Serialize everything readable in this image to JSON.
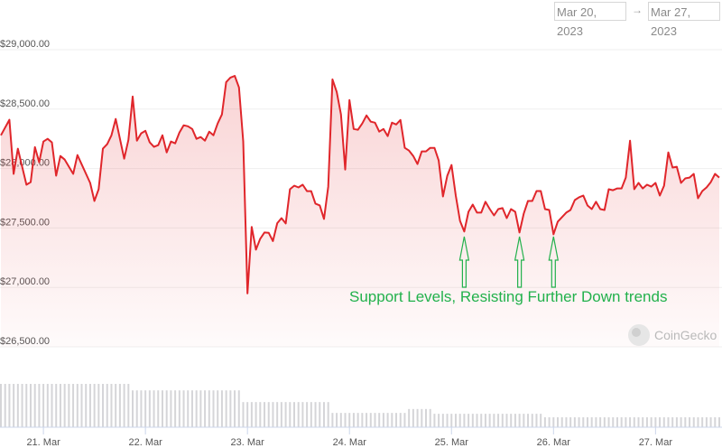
{
  "date_range": {
    "from": "Mar 20, 2023",
    "arrow": "→",
    "to": "Mar 27, 2023"
  },
  "watermark": "CoinGecko",
  "annotation": {
    "text": "Support Levels, Resisting Further  Down trends",
    "color": "#22b14c",
    "arrow_points": [
      "Mar 25 03:00",
      "Mar 25 16:00",
      "Mar 26 00:00"
    ]
  },
  "chart_data": {
    "type": "area",
    "title": "",
    "xlabel": "",
    "ylabel": "",
    "ylim": [
      26500,
      29000
    ],
    "y_ticks": [
      "$29,000.00",
      "$28,500.00",
      "$28,000.00",
      "$27,500.00",
      "$27,000.00",
      "$26,500.00"
    ],
    "y_tick_values": [
      29000,
      28500,
      28000,
      27500,
      27000,
      26500
    ],
    "x_ticks": [
      "21. Mar",
      "22. Mar",
      "23. Mar",
      "24. Mar",
      "25. Mar",
      "26. Mar",
      "27. Mar"
    ],
    "x_tick_values": [
      "Mar 21 00:00",
      "Mar 22 00:00",
      "Mar 23 00:00",
      "Mar 24 00:00",
      "Mar 25 00:00",
      "Mar 26 00:00",
      "Mar 27 00:00"
    ],
    "grid": true,
    "line_color": "#e0262b",
    "points": [
      [
        "Mar 20 14:00",
        28280
      ],
      [
        "Mar 20 16:00",
        28410
      ],
      [
        "Mar 20 17:00",
        27955
      ],
      [
        "Mar 20 18:00",
        28167
      ],
      [
        "Mar 20 20:00",
        27864
      ],
      [
        "Mar 20 21:00",
        27886
      ],
      [
        "Mar 20 22:00",
        28180
      ],
      [
        "Mar 20 23:00",
        28053
      ],
      [
        "Mar 21 00:00",
        28227
      ],
      [
        "Mar 21 01:00",
        28250
      ],
      [
        "Mar 21 02:00",
        28220
      ],
      [
        "Mar 21 03:00",
        27940
      ],
      [
        "Mar 21 04:00",
        28106
      ],
      [
        "Mar 21 05:00",
        28075
      ],
      [
        "Mar 21 07:00",
        27955
      ],
      [
        "Mar 21 08:00",
        28113
      ],
      [
        "Mar 21 11:00",
        27879
      ],
      [
        "Mar 21 12:00",
        27727
      ],
      [
        "Mar 21 13:00",
        27826
      ],
      [
        "Mar 21 14:00",
        28167
      ],
      [
        "Mar 21 15:00",
        28205
      ],
      [
        "Mar 21 16:00",
        28280
      ],
      [
        "Mar 21 17:00",
        28417
      ],
      [
        "Mar 21 19:00",
        28083
      ],
      [
        "Mar 21 20:00",
        28242
      ],
      [
        "Mar 21 21:00",
        28606
      ],
      [
        "Mar 21 22:00",
        28235
      ],
      [
        "Mar 21 23:00",
        28296
      ],
      [
        "Mar 22 00:00",
        28318
      ],
      [
        "Mar 22 01:00",
        28220
      ],
      [
        "Mar 22 02:00",
        28182
      ],
      [
        "Mar 22 03:00",
        28197
      ],
      [
        "Mar 22 04:00",
        28280
      ],
      [
        "Mar 22 05:00",
        28136
      ],
      [
        "Mar 22 06:00",
        28227
      ],
      [
        "Mar 22 07:00",
        28212
      ],
      [
        "Mar 22 08:00",
        28303
      ],
      [
        "Mar 22 09:00",
        28364
      ],
      [
        "Mar 22 10:00",
        28356
      ],
      [
        "Mar 22 11:00",
        28333
      ],
      [
        "Mar 22 12:00",
        28250
      ],
      [
        "Mar 22 13:00",
        28265
      ],
      [
        "Mar 22 14:00",
        28235
      ],
      [
        "Mar 22 15:00",
        28310
      ],
      [
        "Mar 22 16:00",
        28280
      ],
      [
        "Mar 22 17:00",
        28379
      ],
      [
        "Mar 22 18:00",
        28455
      ],
      [
        "Mar 22 19:00",
        28727
      ],
      [
        "Mar 22 20:00",
        28765
      ],
      [
        "Mar 22 21:00",
        28780
      ],
      [
        "Mar 22 22:00",
        28682
      ],
      [
        "Mar 22 23:00",
        28227
      ],
      [
        "Mar 23 00:00",
        26950
      ],
      [
        "Mar 23 01:00",
        27508
      ],
      [
        "Mar 23 02:00",
        27318
      ],
      [
        "Mar 23 03:00",
        27409
      ],
      [
        "Mar 23 04:00",
        27462
      ],
      [
        "Mar 23 05:00",
        27460
      ],
      [
        "Mar 23 06:00",
        27390
      ],
      [
        "Mar 23 07:00",
        27540
      ],
      [
        "Mar 23 08:00",
        27583
      ],
      [
        "Mar 23 09:00",
        27538
      ],
      [
        "Mar 23 10:00",
        27826
      ],
      [
        "Mar 23 11:00",
        27856
      ],
      [
        "Mar 23 12:00",
        27841
      ],
      [
        "Mar 23 13:00",
        27864
      ],
      [
        "Mar 23 14:00",
        27810
      ],
      [
        "Mar 23 15:00",
        27810
      ],
      [
        "Mar 23 16:00",
        27705
      ],
      [
        "Mar 23 17:00",
        27690
      ],
      [
        "Mar 23 18:00",
        27576
      ],
      [
        "Mar 23 19:00",
        27848
      ],
      [
        "Mar 23 20:00",
        28750
      ],
      [
        "Mar 23 21:00",
        28644
      ],
      [
        "Mar 23 22:00",
        28455
      ],
      [
        "Mar 23 23:00",
        27992
      ],
      [
        "Mar 24 00:00",
        28576
      ],
      [
        "Mar 24 01:00",
        28333
      ],
      [
        "Mar 24 02:00",
        28326
      ],
      [
        "Mar 24 03:00",
        28379
      ],
      [
        "Mar 24 04:00",
        28447
      ],
      [
        "Mar 24 05:00",
        28394
      ],
      [
        "Mar 24 06:00",
        28386
      ],
      [
        "Mar 24 07:00",
        28311
      ],
      [
        "Mar 24 08:00",
        28333
      ],
      [
        "Mar 24 09:00",
        28273
      ],
      [
        "Mar 24 10:00",
        28386
      ],
      [
        "Mar 24 11:00",
        28371
      ],
      [
        "Mar 24 12:00",
        28409
      ],
      [
        "Mar 24 13:00",
        28174
      ],
      [
        "Mar 24 14:00",
        28151
      ],
      [
        "Mar 24 15:00",
        28106
      ],
      [
        "Mar 24 16:00",
        28038
      ],
      [
        "Mar 24 17:00",
        28144
      ],
      [
        "Mar 24 18:00",
        28144
      ],
      [
        "Mar 24 19:00",
        28174
      ],
      [
        "Mar 24 20:00",
        28174
      ],
      [
        "Mar 24 21:00",
        28068
      ],
      [
        "Mar 24 22:00",
        27765
      ],
      [
        "Mar 24 23:00",
        27939
      ],
      [
        "Mar 25 00:00",
        28030
      ],
      [
        "Mar 25 01:00",
        27773
      ],
      [
        "Mar 25 02:00",
        27560
      ],
      [
        "Mar 25 03:00",
        27470
      ],
      [
        "Mar 25 04:00",
        27636
      ],
      [
        "Mar 25 05:00",
        27697
      ],
      [
        "Mar 25 06:00",
        27629
      ],
      [
        "Mar 25 07:00",
        27629
      ],
      [
        "Mar 25 08:00",
        27720
      ],
      [
        "Mar 25 09:00",
        27659
      ],
      [
        "Mar 25 10:00",
        27606
      ],
      [
        "Mar 25 11:00",
        27659
      ],
      [
        "Mar 25 12:00",
        27667
      ],
      [
        "Mar 25 13:00",
        27583
      ],
      [
        "Mar 25 14:00",
        27659
      ],
      [
        "Mar 25 15:00",
        27636
      ],
      [
        "Mar 25 16:00",
        27462
      ],
      [
        "Mar 25 17:00",
        27620
      ],
      [
        "Mar 25 18:00",
        27727
      ],
      [
        "Mar 25 19:00",
        27727
      ],
      [
        "Mar 25 20:00",
        27811
      ],
      [
        "Mar 25 21:00",
        27811
      ],
      [
        "Mar 25 22:00",
        27659
      ],
      [
        "Mar 25 23:00",
        27651
      ],
      [
        "Mar 26 00:00",
        27447
      ],
      [
        "Mar 26 01:00",
        27553
      ],
      [
        "Mar 26 02:00",
        27591
      ],
      [
        "Mar 26 03:00",
        27629
      ],
      [
        "Mar 26 04:00",
        27651
      ],
      [
        "Mar 26 05:00",
        27735
      ],
      [
        "Mar 26 06:00",
        27758
      ],
      [
        "Mar 26 07:00",
        27773
      ],
      [
        "Mar 26 08:00",
        27689
      ],
      [
        "Mar 26 09:00",
        27659
      ],
      [
        "Mar 26 10:00",
        27720
      ],
      [
        "Mar 26 11:00",
        27659
      ],
      [
        "Mar 26 12:00",
        27651
      ],
      [
        "Mar 26 13:00",
        27826
      ],
      [
        "Mar 26 14:00",
        27818
      ],
      [
        "Mar 26 15:00",
        27833
      ],
      [
        "Mar 26 16:00",
        27833
      ],
      [
        "Mar 26 17:00",
        27924
      ],
      [
        "Mar 26 18:00",
        28235
      ],
      [
        "Mar 26 19:00",
        27826
      ],
      [
        "Mar 26 20:00",
        27879
      ],
      [
        "Mar 26 21:00",
        27833
      ],
      [
        "Mar 26 22:00",
        27864
      ],
      [
        "Mar 26 23:00",
        27848
      ],
      [
        "Mar 27 00:00",
        27879
      ],
      [
        "Mar 27 01:00",
        27773
      ],
      [
        "Mar 27 02:00",
        27856
      ],
      [
        "Mar 27 03:00",
        28136
      ],
      [
        "Mar 27 04:00",
        28008
      ],
      [
        "Mar 27 05:00",
        28015
      ],
      [
        "Mar 27 06:00",
        27879
      ],
      [
        "Mar 27 07:00",
        27917
      ],
      [
        "Mar 27 08:00",
        27924
      ],
      [
        "Mar 27 09:00",
        27955
      ],
      [
        "Mar 27 10:00",
        27750
      ],
      [
        "Mar 27 11:00",
        27811
      ],
      [
        "Mar 27 12:00",
        27841
      ],
      [
        "Mar 27 13:00",
        27886
      ],
      [
        "Mar 27 14:00",
        27955
      ],
      [
        "Mar 27 15:00",
        27924
      ]
    ],
    "volume_relative_segments": [
      [
        "Mar 20 14:00",
        "Mar 21 21:00",
        1.0
      ],
      [
        "Mar 21 21:00",
        "Mar 22 23:00",
        0.85
      ],
      [
        "Mar 22 23:00",
        "Mar 23 20:00",
        0.58
      ],
      [
        "Mar 23 20:00",
        "Mar 24 14:00",
        0.33
      ],
      [
        "Mar 24 14:00",
        "Mar 24 20:00",
        0.42
      ],
      [
        "Mar 24 20:00",
        "Mar 25 22:00",
        0.31
      ],
      [
        "Mar 25 22:00",
        "Mar 27 15:00",
        0.23
      ]
    ]
  }
}
